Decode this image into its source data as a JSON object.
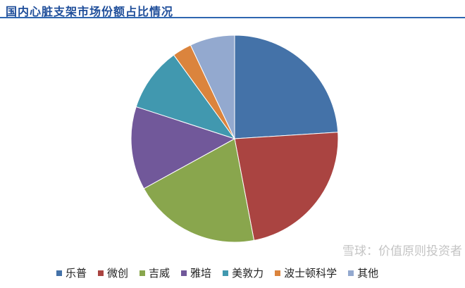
{
  "title": "国内心脏支架市场份额占比情况",
  "watermark": "雪球：价值原则投资者",
  "chart_data": {
    "type": "pie",
    "title": "国内心脏支架市场份额占比情况",
    "legend_position": "bottom",
    "start_angle": "12 o'clock, clockwise",
    "categories": [
      "乐普",
      "微创",
      "吉威",
      "雅培",
      "美敦力",
      "波士顿科学",
      "其他"
    ],
    "values": [
      24,
      23,
      20,
      13,
      10,
      3,
      7
    ],
    "unit": "%",
    "colors": [
      "#4472a8",
      "#aa4441",
      "#89a64d",
      "#71589a",
      "#4198af",
      "#db843d",
      "#93a9cf"
    ]
  }
}
